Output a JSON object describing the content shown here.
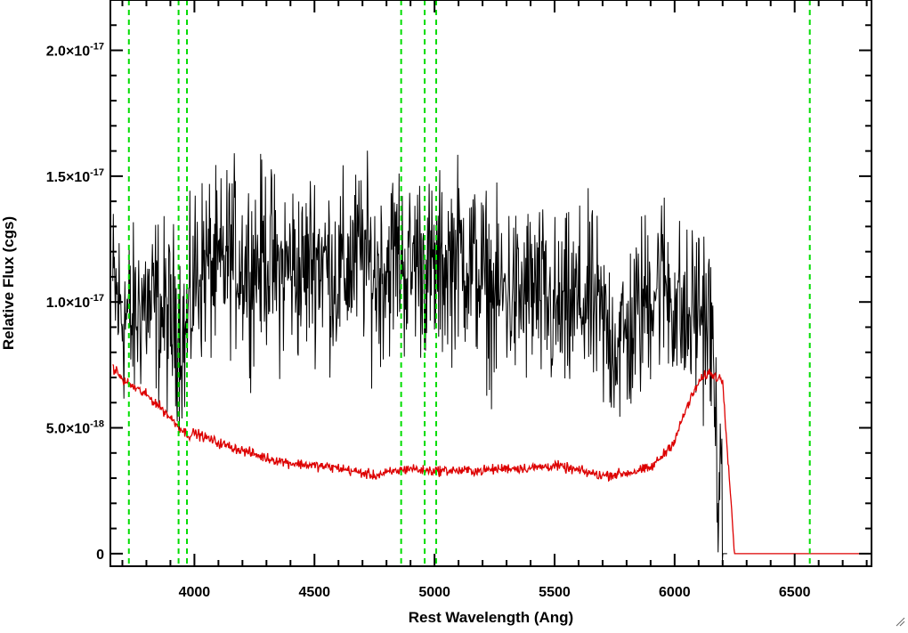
{
  "chart_data": {
    "type": "line",
    "title": "",
    "xlabel": "Rest Wavelength (Ang)",
    "ylabel": "Relative Flux (cgs)",
    "xlim": [
      3650,
      6820
    ],
    "ylim": [
      -5e-19,
      2.2e-17
    ],
    "x_ticks": [
      {
        "value": 4000,
        "label": "4000"
      },
      {
        "value": 4500,
        "label": "4500"
      },
      {
        "value": 5000,
        "label": "5000"
      },
      {
        "value": 5500,
        "label": "5500"
      },
      {
        "value": 6000,
        "label": "6000"
      },
      {
        "value": 6500,
        "label": "6500"
      }
    ],
    "y_ticks": [
      {
        "value": 0,
        "mantissa": "0",
        "exponent": ""
      },
      {
        "value": 5e-18,
        "mantissa": "5.0×10",
        "exponent": "-18"
      },
      {
        "value": 1e-17,
        "mantissa": "1.0×10",
        "exponent": "-17"
      },
      {
        "value": 1.5e-17,
        "mantissa": "1.5×10",
        "exponent": "-17"
      },
      {
        "value": 2e-17,
        "mantissa": "2.0×10",
        "exponent": "-17"
      }
    ],
    "grid": false,
    "vertical_lines": {
      "color": "#00dd00",
      "style": "dashed",
      "x": [
        3727,
        3934,
        3969,
        4861,
        4959,
        5007,
        6563
      ]
    },
    "series": [
      {
        "color": "#000000",
        "x": [
          3660,
          3680,
          3700,
          3720,
          3740,
          3760,
          3780,
          3800,
          3820,
          3840,
          3860,
          3880,
          3900,
          3920,
          3940,
          3960,
          3980,
          4000,
          4050,
          4100,
          4150,
          4200,
          4250,
          4300,
          4350,
          4400,
          4450,
          4500,
          4550,
          4600,
          4650,
          4700,
          4750,
          4800,
          4850,
          4900,
          4920,
          4950,
          5000,
          5050,
          5100,
          5150,
          5200,
          5250,
          5300,
          5350,
          5400,
          5450,
          5500,
          5550,
          5600,
          5650,
          5700,
          5750,
          5800,
          5850,
          5900,
          5950,
          6000,
          6050,
          6100,
          6150,
          6200,
          6220
        ],
        "y": [
          1.05e-17,
          1e-17,
          9.5e-18,
          9.5e-18,
          9e-18,
          9.5e-18,
          1e-17,
          1e-17,
          9.5e-18,
          1e-17,
          9.5e-18,
          9.5e-18,
          9e-18,
          9.5e-18,
          9e-18,
          8.5e-18,
          9.5e-18,
          1.1e-17,
          1.15e-17,
          1.1e-17,
          1.2e-17,
          1.15e-17,
          1.15e-17,
          1.2e-17,
          1.1e-17,
          1.15e-17,
          1.1e-17,
          1.2e-17,
          1.15e-17,
          1.1e-17,
          1.15e-17,
          1.2e-17,
          1.1e-17,
          1.15e-17,
          1.2e-17,
          1.1e-17,
          1.2e-17,
          1.15e-17,
          1.1e-17,
          1.15e-17,
          1.2e-17,
          1.15e-17,
          1.1e-17,
          1e-17,
          1.05e-17,
          1e-17,
          1.05e-17,
          1e-17,
          9.5e-18,
          9.5e-18,
          1e-17,
          1e-17,
          9e-18,
          8.5e-18,
          8.5e-18,
          9.5e-18,
          1.05e-17,
          1.1e-17,
          1e-17,
          9e-18,
          1e-17,
          9e-18,
          0.0,
          0.0
        ],
        "noise_amplitude": 1.8e-18
      },
      {
        "color": "#dd0000",
        "x": [
          3660,
          3680,
          3700,
          3750,
          3800,
          3850,
          3900,
          3950,
          3980,
          4000,
          4100,
          4200,
          4300,
          4400,
          4500,
          4600,
          4700,
          4750,
          4800,
          4850,
          4900,
          4950,
          5000,
          5100,
          5200,
          5300,
          5400,
          5500,
          5600,
          5700,
          5800,
          5900,
          5950,
          6000,
          6050,
          6100,
          6140,
          6200,
          6250,
          6300,
          6500,
          6820
        ],
        "y": [
          7.4e-18,
          7.2e-18,
          6.9e-18,
          6.6e-18,
          6.3e-18,
          5.9e-18,
          5.4e-18,
          4.9e-18,
          4.7e-18,
          4.8e-18,
          4.4e-18,
          4.1e-18,
          3.8e-18,
          3.6e-18,
          3.5e-18,
          3.4e-18,
          3.2e-18,
          3.1e-18,
          3.2e-18,
          3.3e-18,
          3.4e-18,
          3.3e-18,
          3.3e-18,
          3.3e-18,
          3.3e-18,
          3.4e-18,
          3.4e-18,
          3.5e-18,
          3.3e-18,
          3.1e-18,
          3.2e-18,
          3.4e-18,
          3.9e-18,
          4.5e-18,
          5.8e-18,
          6.8e-18,
          7.2e-18,
          6.9e-18,
          0.0,
          0.0,
          0.0,
          0.0
        ],
        "noise_amplitude": 1e-19
      }
    ]
  }
}
